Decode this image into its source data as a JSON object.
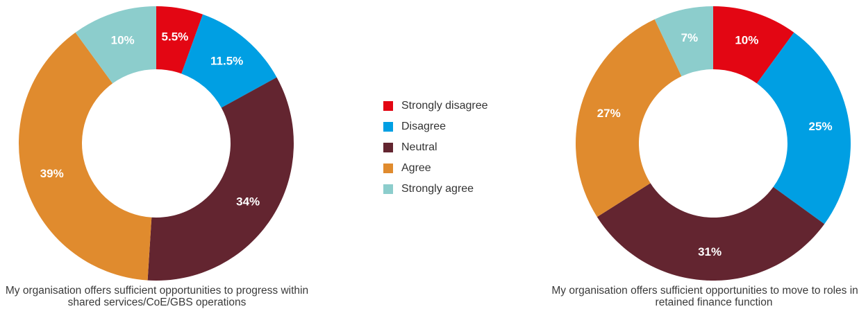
{
  "legend": {
    "items": [
      {
        "label": "Strongly disagree",
        "color": "#e30613"
      },
      {
        "label": "Disagree",
        "color": "#009fe3"
      },
      {
        "label": "Neutral",
        "color": "#632530"
      },
      {
        "label": "Agree",
        "color": "#e08b2e"
      },
      {
        "label": "Strongly agree",
        "color": "#8ccdcc"
      }
    ]
  },
  "captions": {
    "left": "My organisation offers sufficient opportunities to progress within shared services/CoE/GBS operations",
    "right": "My organisation offers sufficient opportunities to move to roles in the retained finance function"
  },
  "chart_data": [
    {
      "type": "pie",
      "donut": true,
      "categories": [
        "Strongly disagree",
        "Disagree",
        "Neutral",
        "Agree",
        "Strongly agree"
      ],
      "values": [
        5.5,
        11.5,
        34,
        39,
        10
      ],
      "labels": [
        "5.5%",
        "11.5%",
        "34%",
        "39%",
        "10%"
      ],
      "caption": "My organisation offers sufficient opportunities to progress within shared services/CoE/GBS operations"
    },
    {
      "type": "pie",
      "donut": true,
      "categories": [
        "Strongly disagree",
        "Disagree",
        "Neutral",
        "Agree",
        "Strongly agree"
      ],
      "values": [
        10,
        25,
        31,
        27,
        7
      ],
      "labels": [
        "10%",
        "25%",
        "31%",
        "27%",
        "7%"
      ],
      "caption": "My organisation offers sufficient opportunities to move to roles in the retained finance function"
    }
  ]
}
